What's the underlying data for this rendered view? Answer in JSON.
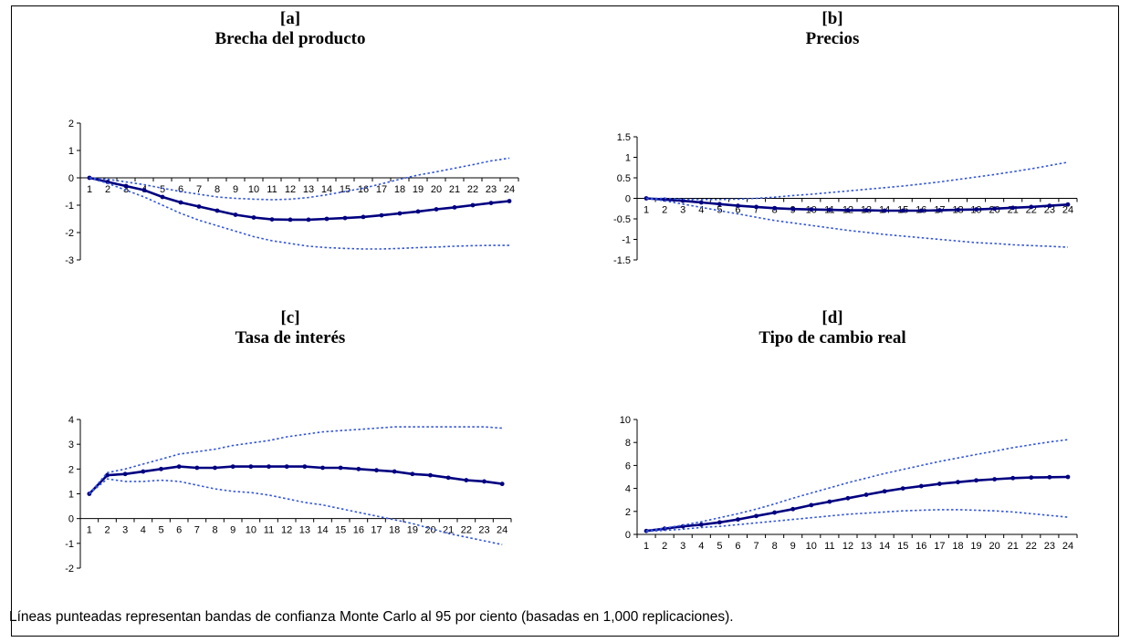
{
  "footnote": "Líneas punteadas representan bandas de confianza Monte Carlo al 95 por ciento  (basadas en 1,000 replicaciones).",
  "colors": {
    "mean": "#000080",
    "band": "#3355dd",
    "axis": "#000000"
  },
  "chart_data": [
    {
      "type": "line",
      "panel_label": "[a]",
      "title": "Brecha del producto",
      "x": [
        1,
        2,
        3,
        4,
        5,
        6,
        7,
        8,
        9,
        10,
        11,
        12,
        13,
        14,
        15,
        16,
        17,
        18,
        19,
        20,
        21,
        22,
        23,
        24
      ],
      "ylim": [
        -3,
        2
      ],
      "yticks": [
        2,
        1,
        0,
        -1,
        -2,
        -3
      ],
      "series": [
        {
          "role": "estimate",
          "values": [
            0,
            -0.15,
            -0.3,
            -0.45,
            -0.7,
            -0.9,
            -1.05,
            -1.2,
            -1.35,
            -1.45,
            -1.52,
            -1.53,
            -1.53,
            -1.5,
            -1.47,
            -1.43,
            -1.37,
            -1.3,
            -1.23,
            -1.15,
            -1.08,
            -1.0,
            -0.92,
            -0.85
          ]
        },
        {
          "role": "upper_band",
          "values": [
            0,
            -0.05,
            -0.15,
            -0.25,
            -0.38,
            -0.5,
            -0.6,
            -0.7,
            -0.75,
            -0.78,
            -0.8,
            -0.78,
            -0.72,
            -0.62,
            -0.5,
            -0.38,
            -0.22,
            -0.05,
            0.1,
            0.22,
            0.35,
            0.48,
            0.62,
            0.72
          ]
        },
        {
          "role": "lower_band",
          "values": [
            0,
            -0.2,
            -0.45,
            -0.7,
            -1.0,
            -1.3,
            -1.55,
            -1.75,
            -1.95,
            -2.15,
            -2.3,
            -2.4,
            -2.5,
            -2.55,
            -2.58,
            -2.6,
            -2.6,
            -2.58,
            -2.55,
            -2.53,
            -2.5,
            -2.48,
            -2.47,
            -2.47
          ]
        }
      ]
    },
    {
      "type": "line",
      "panel_label": "[b]",
      "title": "Precios",
      "x": [
        1,
        2,
        3,
        4,
        5,
        6,
        7,
        8,
        9,
        10,
        11,
        12,
        13,
        14,
        15,
        16,
        17,
        18,
        19,
        20,
        21,
        22,
        23,
        24
      ],
      "ylim": [
        -1.5,
        1.5
      ],
      "yticks": [
        1.5,
        1,
        0.5,
        0,
        -0.5,
        -1,
        -1.5
      ],
      "series": [
        {
          "role": "estimate",
          "values": [
            0,
            -0.03,
            -0.06,
            -0.1,
            -0.14,
            -0.18,
            -0.21,
            -0.24,
            -0.26,
            -0.27,
            -0.28,
            -0.29,
            -0.29,
            -0.3,
            -0.3,
            -0.3,
            -0.29,
            -0.28,
            -0.27,
            -0.25,
            -0.23,
            -0.21,
            -0.18,
            -0.15
          ]
        },
        {
          "role": "upper_band",
          "values": [
            0,
            0,
            -0.02,
            -0.03,
            -0.03,
            -0.02,
            0,
            0.03,
            0.07,
            0.1,
            0.14,
            0.18,
            0.22,
            0.26,
            0.3,
            0.35,
            0.4,
            0.46,
            0.52,
            0.58,
            0.65,
            0.72,
            0.8,
            0.88
          ]
        },
        {
          "role": "lower_band",
          "values": [
            0,
            -0.06,
            -0.14,
            -0.22,
            -0.3,
            -0.38,
            -0.46,
            -0.54,
            -0.6,
            -0.66,
            -0.72,
            -0.78,
            -0.83,
            -0.88,
            -0.92,
            -0.96,
            -1.0,
            -1.04,
            -1.08,
            -1.1,
            -1.13,
            -1.15,
            -1.17,
            -1.19
          ]
        }
      ]
    },
    {
      "type": "line",
      "panel_label": "[c]",
      "title": "Tasa de interés",
      "x": [
        1,
        2,
        3,
        4,
        5,
        6,
        7,
        8,
        9,
        10,
        11,
        12,
        13,
        14,
        15,
        16,
        17,
        18,
        19,
        20,
        21,
        22,
        23,
        24
      ],
      "ylim": [
        -2,
        4
      ],
      "yticks": [
        4,
        3,
        2,
        1,
        0,
        -1,
        -2
      ],
      "series": [
        {
          "role": "estimate",
          "values": [
            1.0,
            1.75,
            1.8,
            1.9,
            2.0,
            2.1,
            2.05,
            2.05,
            2.1,
            2.1,
            2.1,
            2.1,
            2.1,
            2.05,
            2.05,
            2.0,
            1.95,
            1.9,
            1.8,
            1.75,
            1.65,
            1.55,
            1.5,
            1.4
          ]
        },
        {
          "role": "upper_band",
          "values": [
            1.0,
            1.85,
            2.0,
            2.2,
            2.4,
            2.6,
            2.7,
            2.8,
            2.95,
            3.05,
            3.15,
            3.3,
            3.4,
            3.5,
            3.55,
            3.6,
            3.65,
            3.7,
            3.7,
            3.7,
            3.7,
            3.7,
            3.7,
            3.65
          ]
        },
        {
          "role": "lower_band",
          "values": [
            1.0,
            1.6,
            1.5,
            1.5,
            1.55,
            1.5,
            1.35,
            1.2,
            1.1,
            1.05,
            0.95,
            0.8,
            0.65,
            0.55,
            0.4,
            0.25,
            0.1,
            -0.05,
            -0.2,
            -0.4,
            -0.6,
            -0.75,
            -0.9,
            -1.05
          ]
        }
      ]
    },
    {
      "type": "line",
      "panel_label": "[d]",
      "title": "Tipo de cambio real",
      "x": [
        1,
        2,
        3,
        4,
        5,
        6,
        7,
        8,
        9,
        10,
        11,
        12,
        13,
        14,
        15,
        16,
        17,
        18,
        19,
        20,
        21,
        22,
        23,
        24
      ],
      "ylim": [
        0,
        10
      ],
      "yticks": [
        10,
        8,
        6,
        4,
        2,
        0
      ],
      "series": [
        {
          "role": "estimate",
          "values": [
            0.3,
            0.5,
            0.7,
            0.85,
            1.05,
            1.3,
            1.6,
            1.9,
            2.2,
            2.55,
            2.85,
            3.15,
            3.45,
            3.75,
            4.0,
            4.2,
            4.4,
            4.55,
            4.7,
            4.8,
            4.9,
            4.95,
            4.98,
            5.0
          ]
        },
        {
          "role": "upper_band",
          "values": [
            0.3,
            0.55,
            0.8,
            1.1,
            1.45,
            1.8,
            2.2,
            2.65,
            3.15,
            3.6,
            4.05,
            4.5,
            4.9,
            5.3,
            5.65,
            6.0,
            6.35,
            6.65,
            6.95,
            7.25,
            7.55,
            7.8,
            8.05,
            8.25
          ]
        },
        {
          "role": "lower_band",
          "values": [
            0.25,
            0.35,
            0.45,
            0.6,
            0.7,
            0.85,
            1.0,
            1.15,
            1.3,
            1.45,
            1.6,
            1.75,
            1.85,
            1.95,
            2.05,
            2.1,
            2.15,
            2.15,
            2.1,
            2.05,
            1.95,
            1.8,
            1.65,
            1.5
          ]
        }
      ]
    }
  ]
}
